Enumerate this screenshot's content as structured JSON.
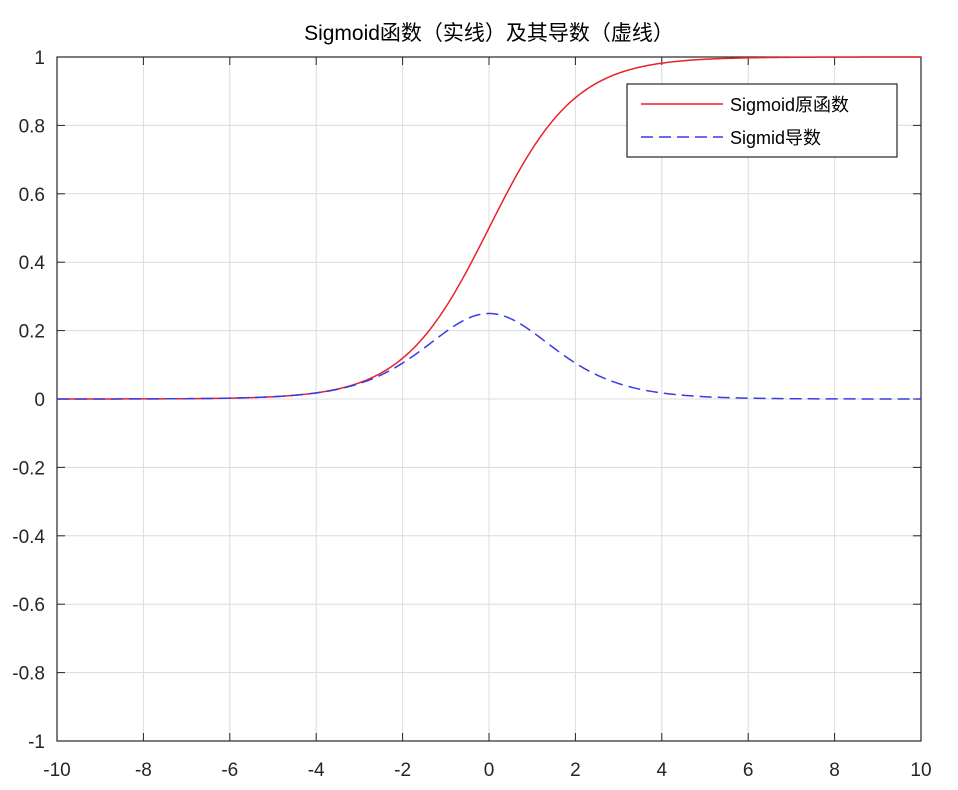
{
  "chart_data": {
    "type": "line",
    "title": "Sigmoid函数（实线）及其导数（虚线）",
    "xlabel": "",
    "ylabel": "",
    "xlim": [
      -10,
      10
    ],
    "ylim": [
      -1,
      1
    ],
    "xticks": [
      -10,
      -8,
      -6,
      -4,
      -2,
      0,
      2,
      4,
      6,
      8,
      10
    ],
    "yticks": [
      -1,
      -0.8,
      -0.6,
      -0.4,
      -0.2,
      0,
      0.2,
      0.4,
      0.6,
      0.8,
      1
    ],
    "xtick_labels": [
      "-10",
      "-8",
      "-6",
      "-4",
      "-2",
      "0",
      "2",
      "4",
      "6",
      "8",
      "10"
    ],
    "ytick_labels": [
      "-1",
      "-0.8",
      "-0.6",
      "-0.4",
      "-0.2",
      "0",
      "0.2",
      "0.4",
      "0.6",
      "0.8",
      "1"
    ],
    "grid": true,
    "legend_position": "top-right",
    "series": [
      {
        "name": "Sigmoid原函数",
        "color": "#e8222b",
        "line_style": "solid",
        "x": [
          -10,
          -8,
          -6,
          -5,
          -4,
          -3,
          -2.5,
          -2,
          -1.5,
          -1,
          -0.5,
          0,
          0.5,
          1,
          1.5,
          2,
          2.5,
          3,
          4,
          5,
          6,
          8,
          10
        ],
        "y": [
          5e-05,
          0.0003,
          0.0025,
          0.0067,
          0.018,
          0.047,
          0.076,
          0.119,
          0.182,
          0.269,
          0.378,
          0.5,
          0.622,
          0.731,
          0.818,
          0.881,
          0.924,
          0.953,
          0.982,
          0.993,
          0.9975,
          0.9997,
          0.99995
        ]
      },
      {
        "name": "Sigmid导数",
        "color": "#3a3ae6",
        "line_style": "dashed",
        "x": [
          -10,
          -8,
          -6,
          -5,
          -4,
          -3,
          -2.5,
          -2,
          -1.5,
          -1,
          -0.5,
          0,
          0.5,
          1,
          1.5,
          2,
          2.5,
          3,
          4,
          5,
          6,
          8,
          10
        ],
        "y": [
          5e-05,
          0.0003,
          0.0025,
          0.0066,
          0.0177,
          0.0452,
          0.0701,
          0.105,
          0.149,
          0.197,
          0.235,
          0.25,
          0.235,
          0.197,
          0.149,
          0.105,
          0.0701,
          0.0452,
          0.0177,
          0.0066,
          0.0025,
          0.0003,
          5e-05
        ]
      }
    ]
  }
}
